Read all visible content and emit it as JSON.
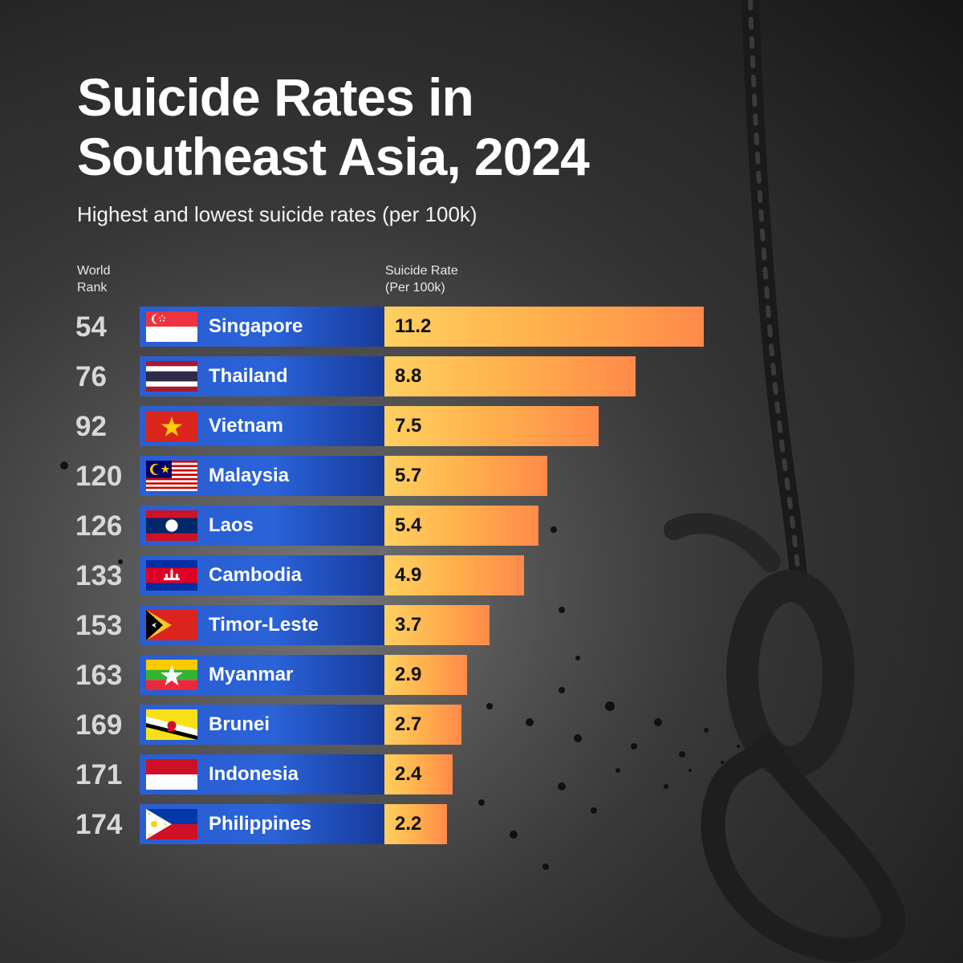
{
  "title_line1": "Suicide Rates in",
  "title_line2": "Southeast Asia, 2024",
  "subtitle": "Highest and lowest suicide rates (per 100k)",
  "rank_header_line1": "World",
  "rank_header_line2": "Rank",
  "value_header_line1": "Suicide Rate",
  "value_header_line2": "(Per 100k)",
  "colors": {
    "country_bar": "#2a62d8",
    "value_bar_start": "#ffd060",
    "value_bar_end": "#ff8a4a",
    "rank_text": "#d8d8d8"
  },
  "chart_data": {
    "type": "bar",
    "orientation": "horizontal",
    "title": "Suicide Rates in Southeast Asia, 2024",
    "subtitle": "Highest and lowest suicide rates (per 100k)",
    "categories": [
      "Singapore",
      "Thailand",
      "Vietnam",
      "Malaysia",
      "Laos",
      "Cambodia",
      "Timor-Leste",
      "Myanmar",
      "Brunei",
      "Indonesia",
      "Philippines"
    ],
    "values": [
      11.2,
      8.8,
      7.5,
      5.7,
      5.4,
      4.9,
      3.7,
      2.9,
      2.7,
      2.4,
      2.2
    ],
    "value_labels": [
      "11.2",
      "8.8",
      "7.5",
      "5.7",
      "5.4",
      "4.9",
      "3.7",
      "2.9",
      "2.7",
      "2.4",
      "2.2"
    ],
    "world_ranks": [
      "54",
      "76",
      "92",
      "120",
      "126",
      "133",
      "153",
      "163",
      "169",
      "171",
      "174"
    ],
    "flags": [
      "singapore-flag-icon",
      "thailand-flag-icon",
      "vietnam-flag-icon",
      "malaysia-flag-icon",
      "laos-flag-icon",
      "cambodia-flag-icon",
      "timor-leste-flag-icon",
      "myanmar-flag-icon",
      "brunei-flag-icon",
      "indonesia-flag-icon",
      "philippines-flag-icon"
    ],
    "xlim": [
      0,
      11.2
    ]
  }
}
